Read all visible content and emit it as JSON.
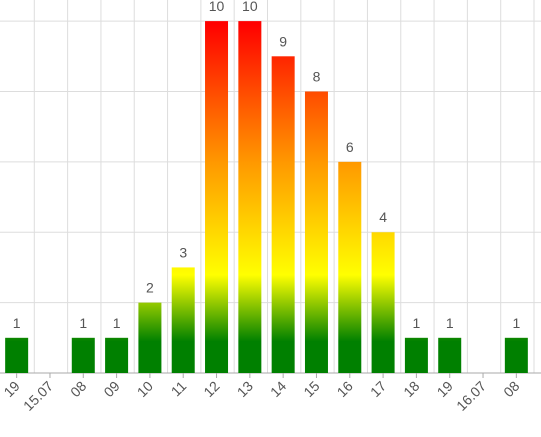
{
  "chart_data": {
    "type": "bar",
    "categories": [
      "19",
      "15.07",
      "08",
      "09",
      "10",
      "11",
      "12",
      "13",
      "14",
      "15",
      "16",
      "17",
      "18",
      "19",
      "16.07",
      "08"
    ],
    "values": [
      1,
      null,
      1,
      1,
      2,
      3,
      10,
      10,
      9,
      8,
      6,
      4,
      1,
      1,
      null,
      1
    ],
    "ylim": [
      0,
      10.6
    ],
    "yticks": [
      0,
      2,
      4,
      6,
      8,
      10
    ],
    "grid": true
  }
}
